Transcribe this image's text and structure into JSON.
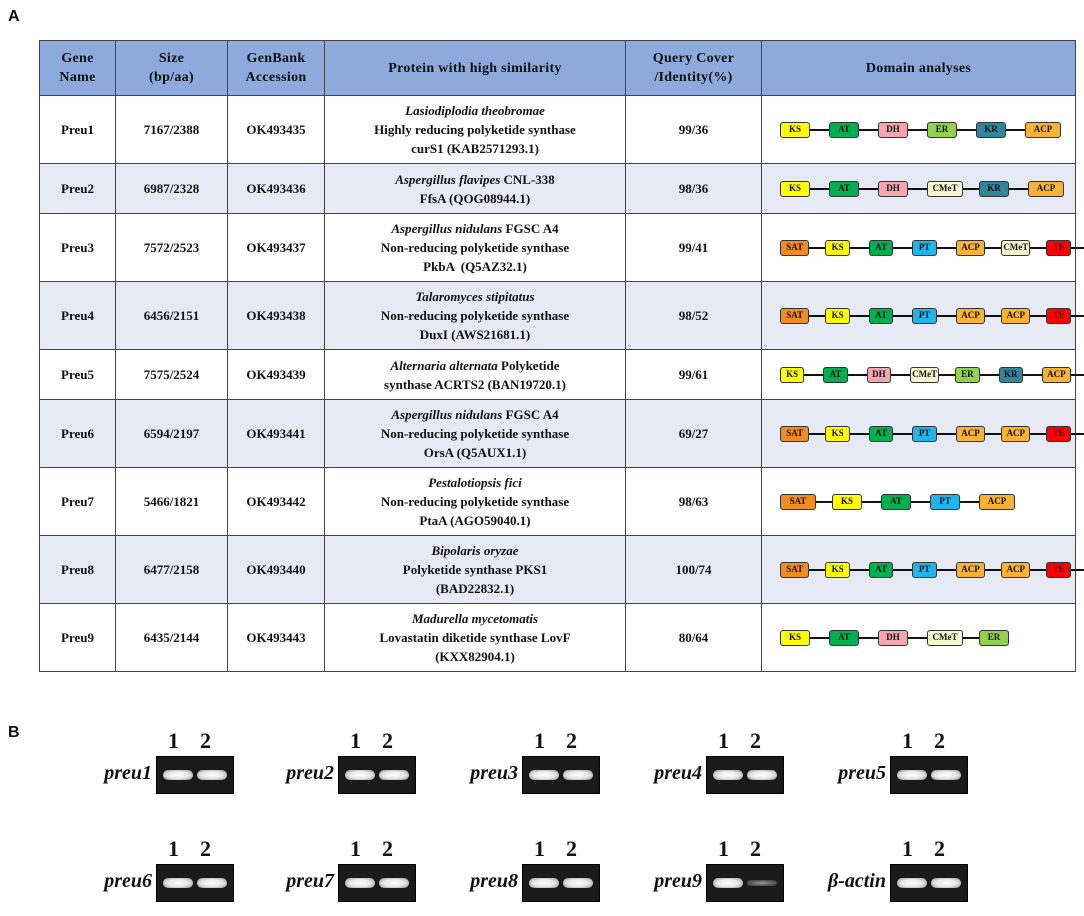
{
  "panels": {
    "a": "A",
    "b": "B"
  },
  "table": {
    "headers": {
      "gene_name": [
        "Gene",
        "Name"
      ],
      "size": [
        "Size",
        "(bp/aa)"
      ],
      "accession": [
        "GenBank",
        "Accession"
      ],
      "protein": [
        "Protein with high similarity"
      ],
      "query": [
        "Query Cover",
        "/Identity(%)"
      ],
      "domain": [
        "Domain analyses"
      ]
    },
    "rows": [
      {
        "gene": "Preu1",
        "size": "7167/2388",
        "acc": "OK493435",
        "prot_org": "Lasiodiplodia theobromae",
        "prot_l2": "Highly reducing polyketide synthase",
        "prot_l3": "curS1 (KAB2571293.1)",
        "qc": "99/36",
        "domains": [
          "KS",
          "AT",
          "DH",
          "ER",
          "KR",
          "ACP"
        ]
      },
      {
        "gene": "Preu2",
        "size": "6987/2328",
        "acc": "OK493436",
        "prot_org": "Aspergillus flavipes",
        "prot_org_suffix": " CNL-338",
        "prot_l2": "FfsA (QOG08944.1)",
        "prot_l3": "",
        "qc": "98/36",
        "domains": [
          "KS",
          "AT",
          "DH",
          "CMeT",
          "KR",
          "ACP"
        ]
      },
      {
        "gene": "Preu3",
        "size": "7572/2523",
        "acc": "OK493437",
        "prot_org": "Aspergillus nidulans",
        "prot_org_suffix": " FGSC A4",
        "prot_l2": "Non-reducing polyketide synthase",
        "prot_l3": "PkbA  (Q5AZ32.1)",
        "qc": "99/41",
        "domains": [
          "SAT",
          "KS",
          "AT",
          "PT",
          "ACP",
          "CMeT",
          "TE"
        ]
      },
      {
        "gene": "Preu4",
        "size": "6456/2151",
        "acc": "OK493438",
        "prot_org": "Talaromyces stipitatus",
        "prot_l2": "Non-reducing polyketide synthase",
        "prot_l3": "DuxI (AWS21681.1)",
        "qc": "98/52",
        "domains": [
          "SAT",
          "KS",
          "AT",
          "PT",
          "ACP",
          "ACP",
          "TE"
        ]
      },
      {
        "gene": "Preu5",
        "size": "7575/2524",
        "acc": "OK493439",
        "prot_org": "Alternaria alternata",
        "prot_org_suffix": " Polyketide",
        "prot_l2": "synthase ACRTS2 (BAN19720.1)",
        "prot_l3": "",
        "qc": "99/61",
        "domains": [
          "KS",
          "AT",
          "DH",
          "CMeT",
          "ER",
          "KR",
          "ACP"
        ]
      },
      {
        "gene": "Preu6",
        "size": "6594/2197",
        "acc": "OK493441",
        "prot_org": "Aspergillus nidulans",
        "prot_org_suffix": " FGSC A4",
        "prot_l2": "Non-reducing polyketide synthase",
        "prot_l3": "OrsA (Q5AUX1.1)",
        "qc": "69/27",
        "domains": [
          "SAT",
          "KS",
          "AT",
          "PT",
          "ACP",
          "ACP",
          "TE"
        ]
      },
      {
        "gene": "Preu7",
        "size": "5466/1821",
        "acc": "OK493442",
        "prot_org": "Pestalotiopsis fici",
        "prot_l2": "Non-reducing polyketide synthase",
        "prot_l3": "PtaA (AGO59040.1)",
        "qc": "98/63",
        "domains": [
          "SAT",
          "KS",
          "AT",
          "PT",
          "ACP"
        ]
      },
      {
        "gene": "Preu8",
        "size": "6477/2158",
        "acc": "OK493440",
        "prot_org": "Bipolaris oryzae",
        "prot_l2": "Polyketide synthase PKS1",
        "prot_l3": "(BAD22832.1)",
        "qc": "100/74",
        "domains": [
          "SAT",
          "KS",
          "AT",
          "PT",
          "ACP",
          "ACP",
          "TE"
        ]
      },
      {
        "gene": "Preu9",
        "size": "6435/2144",
        "acc": "OK493443",
        "prot_org": "Madurella mycetomatis",
        "prot_l2": "Lovastatin diketide synthase LovF",
        "prot_l3": "(KXX82904.1)",
        "qc": "80/64",
        "domains": [
          "KS",
          "AT",
          "DH",
          "CMeT",
          "ER"
        ]
      }
    ]
  },
  "domain_colors": {
    "KS": "#ffff00",
    "AT": "#00b050",
    "DH": "#f4a6b0",
    "ER": "#92d050",
    "KR": "#31869b",
    "ACP": "#f9b233",
    "CMeT": "#f5f5d0",
    "SAT": "#f28c1e",
    "PT": "#1fb4ec",
    "TE": "#ff0000"
  },
  "gels": {
    "lanes": [
      "1",
      "2"
    ],
    "items": [
      {
        "name": "preu1",
        "lane2": "strong"
      },
      {
        "name": "preu2",
        "lane2": "strong"
      },
      {
        "name": "preu3",
        "lane2": "strong"
      },
      {
        "name": "preu4",
        "lane2": "strong"
      },
      {
        "name": "preu5",
        "lane2": "strong"
      },
      {
        "name": "preu6",
        "lane2": "strong"
      },
      {
        "name": "preu7",
        "lane2": "strong"
      },
      {
        "name": "preu8",
        "lane2": "strong"
      },
      {
        "name": "preu9",
        "lane2": "faint"
      },
      {
        "name": "β-actin",
        "lane2": "strong"
      }
    ]
  }
}
